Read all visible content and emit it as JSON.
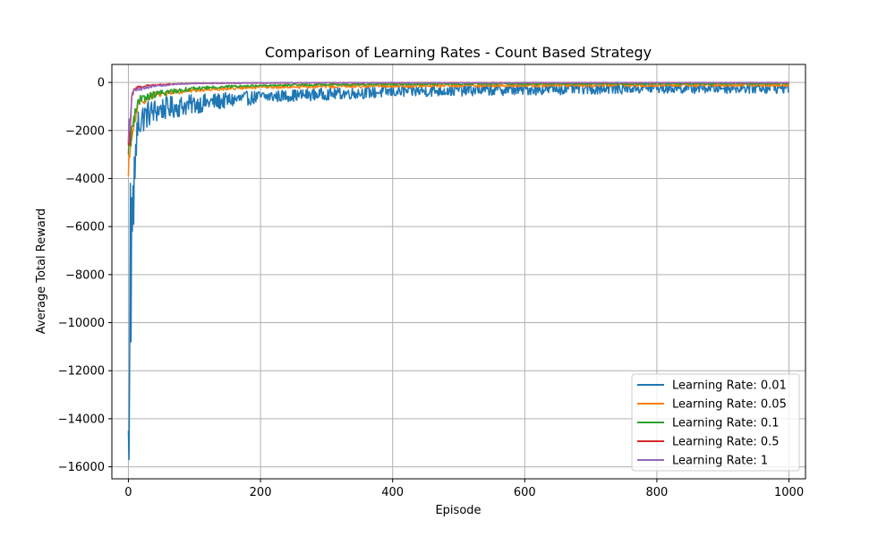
{
  "chart_data": {
    "type": "line",
    "title": "Comparison of Learning Rates - Count Based Strategy",
    "xlabel": "Episode",
    "ylabel": "Average Total Reward",
    "xlim": [
      -25,
      1025
    ],
    "ylim": [
      -16500,
      750
    ],
    "xticks": [
      0,
      200,
      400,
      600,
      800,
      1000
    ],
    "yticks": [
      0,
      -2000,
      -4000,
      -6000,
      -8000,
      -10000,
      -12000,
      -14000,
      -16000
    ],
    "xtick_labels": [
      "0",
      "200",
      "400",
      "600",
      "800",
      "1000"
    ],
    "ytick_labels": [
      "0",
      "−2000",
      "−4000",
      "−6000",
      "−8000",
      "−10000",
      "−12000",
      "−14000",
      "−16000"
    ],
    "grid": true,
    "legend_position": "lower-right",
    "x_range": [
      0,
      1000
    ],
    "series": [
      {
        "name": "Learning Rate: 0.01",
        "color": "#1f77b4",
        "keypoints": [
          [
            0,
            -14500
          ],
          [
            1,
            -15700
          ],
          [
            2,
            -11000
          ],
          [
            3,
            -4200
          ],
          [
            4,
            -10800
          ],
          [
            5,
            -4800
          ],
          [
            6,
            -6200
          ],
          [
            7,
            -4300
          ],
          [
            8,
            -5900
          ],
          [
            9,
            -3100
          ],
          [
            10,
            -4000
          ],
          [
            12,
            -2400
          ],
          [
            15,
            -1700
          ],
          [
            20,
            -1500
          ],
          [
            30,
            -1300
          ],
          [
            50,
            -1100
          ],
          [
            75,
            -1000
          ],
          [
            100,
            -900
          ],
          [
            150,
            -750
          ],
          [
            200,
            -600
          ],
          [
            300,
            -480
          ],
          [
            400,
            -380
          ],
          [
            500,
            -320
          ],
          [
            600,
            -280
          ],
          [
            700,
            -240
          ],
          [
            800,
            -220
          ],
          [
            900,
            -210
          ],
          [
            1000,
            -200
          ]
        ],
        "noise": [
          0.45,
          250
        ]
      },
      {
        "name": "Learning Rate: 0.05",
        "color": "#ff7f0e",
        "keypoints": [
          [
            0,
            -3900
          ],
          [
            3,
            -2700
          ],
          [
            6,
            -2200
          ],
          [
            10,
            -1500
          ],
          [
            15,
            -1000
          ],
          [
            20,
            -800
          ],
          [
            30,
            -600
          ],
          [
            50,
            -450
          ],
          [
            100,
            -320
          ],
          [
            150,
            -250
          ],
          [
            200,
            -200
          ],
          [
            300,
            -160
          ],
          [
            400,
            -140
          ],
          [
            600,
            -120
          ],
          [
            800,
            -110
          ],
          [
            1000,
            -100
          ]
        ],
        "noise": [
          0.25,
          70
        ]
      },
      {
        "name": "Learning Rate: 0.1",
        "color": "#2ca02c",
        "keypoints": [
          [
            0,
            -3000
          ],
          [
            3,
            -2400
          ],
          [
            6,
            -1800
          ],
          [
            10,
            -1100
          ],
          [
            20,
            -700
          ],
          [
            40,
            -500
          ],
          [
            70,
            -350
          ],
          [
            100,
            -250
          ],
          [
            150,
            -170
          ],
          [
            200,
            -130
          ],
          [
            300,
            -90
          ],
          [
            500,
            -60
          ],
          [
            1000,
            -40
          ]
        ],
        "noise": [
          0.3,
          40
        ]
      },
      {
        "name": "Learning Rate: 0.5",
        "color": "#d62728",
        "keypoints": [
          [
            0,
            -2600
          ],
          [
            3,
            -1800
          ],
          [
            5,
            -600
          ],
          [
            8,
            -300
          ],
          [
            15,
            -200
          ],
          [
            30,
            -120
          ],
          [
            60,
            -70
          ],
          [
            100,
            -40
          ],
          [
            200,
            -20
          ],
          [
            400,
            -12
          ],
          [
            1000,
            -5
          ]
        ],
        "noise": [
          0.3,
          15
        ]
      },
      {
        "name": "Learning Rate: 1",
        "color": "#9467bd",
        "keypoints": [
          [
            0,
            -2500
          ],
          [
            3,
            -1500
          ],
          [
            6,
            -500
          ],
          [
            10,
            -300
          ],
          [
            20,
            -250
          ],
          [
            40,
            -150
          ],
          [
            70,
            -80
          ],
          [
            100,
            -40
          ],
          [
            150,
            -20
          ],
          [
            300,
            -10
          ],
          [
            1000,
            -5
          ]
        ],
        "noise": [
          0.3,
          20
        ]
      }
    ]
  }
}
